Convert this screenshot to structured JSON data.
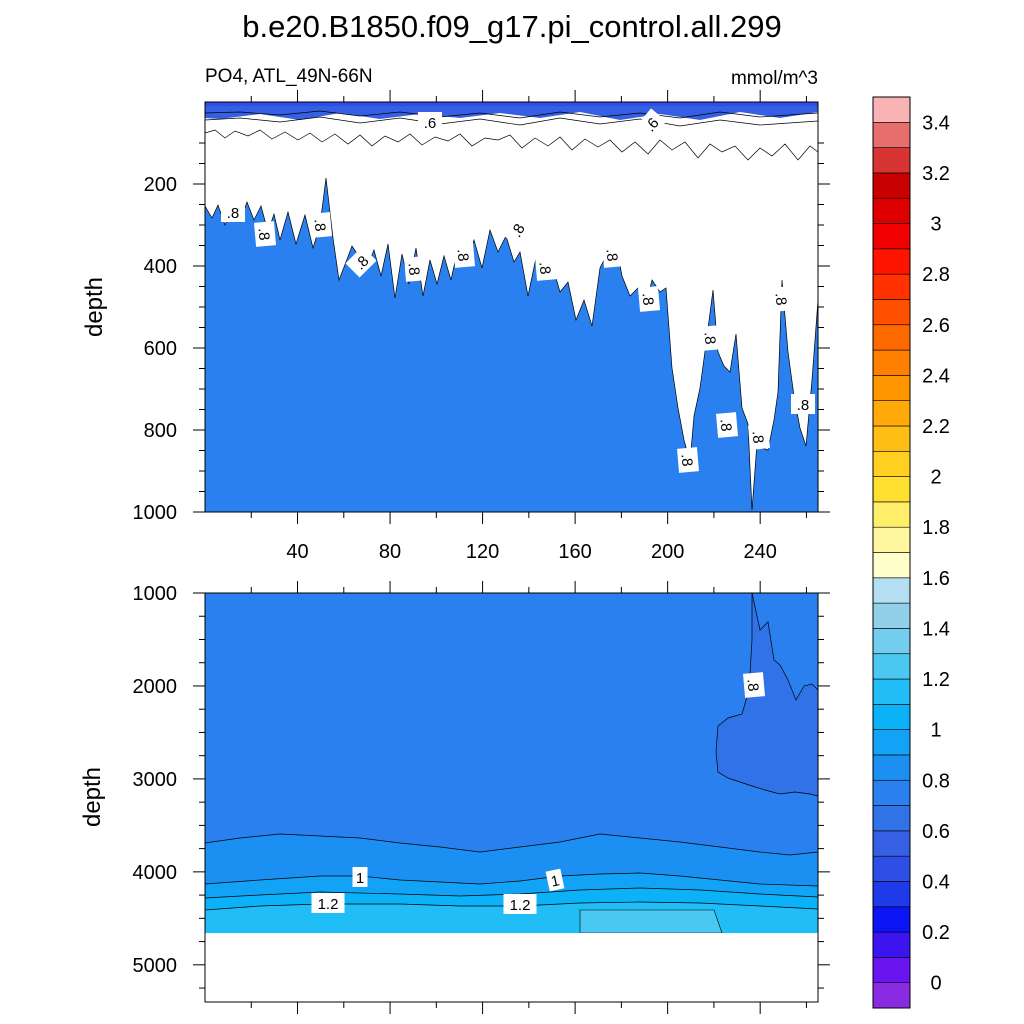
{
  "chart_data": {
    "type": "contour",
    "title": "b.e20.B1850.f09_g17.pi_control.all.299",
    "subtitle_left": "PO4, ATL_49N-66N",
    "units": "mmol/m^3",
    "colorbar": {
      "levels": [
        0,
        0.1,
        0.2,
        0.3,
        0.4,
        0.5,
        0.6,
        0.7,
        0.8,
        0.9,
        1,
        1.1,
        1.2,
        1.3,
        1.4,
        1.5,
        1.6,
        1.7,
        1.8,
        1.9,
        2,
        2.1,
        2.2,
        2.3,
        2.4,
        2.5,
        2.6,
        2.7,
        2.8,
        2.9,
        3,
        3.1,
        3.2,
        3.3,
        3.4,
        3.5
      ],
      "labels": [
        "0",
        "0.2",
        "0.4",
        "0.6",
        "0.8",
        "1",
        "1.2",
        "1.4",
        "1.6",
        "1.8",
        "2",
        "2.2",
        "2.4",
        "2.6",
        "2.8",
        "3",
        "3.2",
        "3.4"
      ],
      "colors": [
        "#8a2be2",
        "#6a14f0",
        "#3c14f0",
        "#0a14f5",
        "#1f3ae8",
        "#2e4ee6",
        "#3660e3",
        "#3272e8",
        "#2a80ee",
        "#1c90f2",
        "#12a2f6",
        "#0cb2f8",
        "#20bdf7",
        "#4ac8f2",
        "#72cdee",
        "#92d0ea",
        "#b4dff2",
        "#ffffcc",
        "#fff6a0",
        "#ffee6a",
        "#ffe030",
        "#ffd020",
        "#ffbe14",
        "#ffaa0a",
        "#ff9600",
        "#ff8000",
        "#ff6a00",
        "#ff5000",
        "#ff3200",
        "#ff1400",
        "#f00000",
        "#de0000",
        "#c80000",
        "#d83434",
        "#e86e6e",
        "#f8b4b4"
      ]
    },
    "top_panel": {
      "ylabel": "depth",
      "ylim": [
        1000,
        0
      ],
      "yticks": [
        "200",
        "400",
        "600",
        "800",
        "1000"
      ],
      "xlim": [
        0,
        265
      ],
      "xticks": [
        "40",
        "80",
        "120",
        "160",
        "200",
        "240"
      ],
      "contour_labels": [
        ".6",
        ".6",
        ".8",
        ".8",
        ".8",
        ".8",
        ".8",
        ".8",
        ".8",
        ".8",
        ".8",
        ".8",
        ".8",
        ".8",
        ".8",
        ".8",
        ".8",
        ".8"
      ]
    },
    "bottom_panel": {
      "ylabel": "depth",
      "ylim": [
        5400,
        1000
      ],
      "yticks": [
        "1000",
        "2000",
        "3000",
        "4000",
        "5000"
      ],
      "contour_labels": [
        ".8",
        "1",
        "1",
        "1.2",
        "1.2"
      ]
    }
  }
}
